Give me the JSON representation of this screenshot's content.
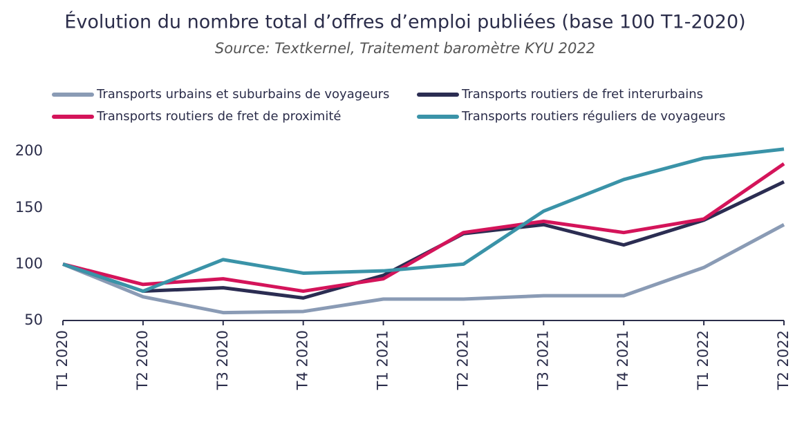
{
  "chart_data": {
    "type": "line",
    "title": "Évolution du nombre total d’offres d’emploi publiées (base 100 T1-2020)",
    "subtitle": "Source: Textkernel, Traitement baromètre KYU 2022",
    "categories": [
      "T1 2020",
      "T2 2020",
      "T3 2020",
      "T4 2020",
      "T1 2021",
      "T2 2021",
      "T3 2021",
      "T4 2021",
      "T1 2022",
      "T2 2022"
    ],
    "series": [
      {
        "name": "Transports urbains et suburbains de voyageurs",
        "color": "#8a9bb5",
        "values": [
          100,
          71,
          57,
          58,
          69,
          69,
          72,
          72,
          97,
          135
        ]
      },
      {
        "name": "Transports routiers de fret interurbains",
        "color": "#2b2d52",
        "values": [
          100,
          76,
          79,
          70,
          90,
          127,
          135,
          117,
          139,
          173
        ]
      },
      {
        "name": "Transports routiers de fret de proximité",
        "color": "#d4145a",
        "values": [
          100,
          82,
          87,
          76,
          87,
          128,
          138,
          128,
          140,
          189
        ]
      },
      {
        "name": "Transports routiers réguliers de voyageurs",
        "color": "#3a93a8",
        "values": [
          100,
          76,
          104,
          92,
          94,
          100,
          147,
          175,
          194,
          202
        ]
      }
    ],
    "ylim": [
      50,
      205
    ],
    "yticks": [
      50,
      100,
      150,
      200
    ]
  }
}
